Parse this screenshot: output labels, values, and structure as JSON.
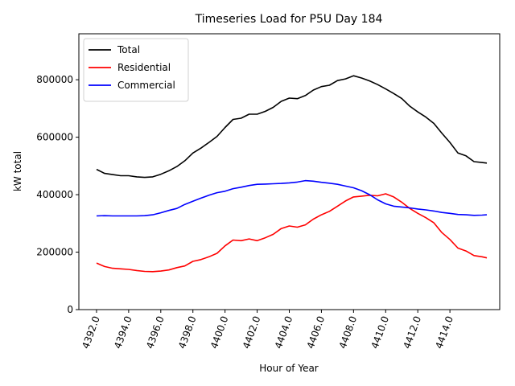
{
  "chart_data": {
    "type": "line",
    "title": "Timeseries Load for P5U   Day 184",
    "xlabel": "Hour of Year",
    "ylabel": "kW total",
    "xlim": [
      4390.9,
      4417.1
    ],
    "ylim": [
      0,
      960000
    ],
    "xticks": [
      4392,
      4394,
      4396,
      4398,
      4400,
      4402,
      4404,
      4406,
      4408,
      4410,
      4412,
      4414
    ],
    "xtick_labels": [
      "4392.0",
      "4394.0",
      "4396.0",
      "4398.0",
      "4400.0",
      "4402.0",
      "4404.0",
      "4406.0",
      "4408.0",
      "4410.0",
      "4412.0",
      "4414.0"
    ],
    "yticks": [
      0,
      200000,
      400000,
      600000,
      800000
    ],
    "ytick_labels": [
      "0",
      "200000",
      "400000",
      "600000",
      "800000"
    ],
    "legend_position": "upper-left",
    "grid": false,
    "series": [
      {
        "name": "Total",
        "color": "#000000",
        "points": [
          [
            4392.0,
            488000
          ],
          [
            4392.5,
            474000
          ],
          [
            4393.0,
            470000
          ],
          [
            4393.5,
            466000
          ],
          [
            4394.0,
            466000
          ],
          [
            4394.5,
            462000
          ],
          [
            4395.0,
            460000
          ],
          [
            4395.5,
            462000
          ],
          [
            4396.0,
            471000
          ],
          [
            4396.5,
            483000
          ],
          [
            4397.0,
            498000
          ],
          [
            4397.5,
            518000
          ],
          [
            4398.0,
            545000
          ],
          [
            4398.5,
            562000
          ],
          [
            4399.0,
            582000
          ],
          [
            4399.5,
            603000
          ],
          [
            4400.0,
            634000
          ],
          [
            4400.5,
            662000
          ],
          [
            4401.0,
            666000
          ],
          [
            4401.5,
            680000
          ],
          [
            4402.0,
            680000
          ],
          [
            4402.5,
            690000
          ],
          [
            4403.0,
            704000
          ],
          [
            4403.5,
            725000
          ],
          [
            4404.0,
            736000
          ],
          [
            4404.5,
            734000
          ],
          [
            4405.0,
            745000
          ],
          [
            4405.5,
            764000
          ],
          [
            4406.0,
            776000
          ],
          [
            4406.5,
            781000
          ],
          [
            4407.0,
            797000
          ],
          [
            4407.5,
            803000
          ],
          [
            4408.0,
            814000
          ],
          [
            4408.5,
            806000
          ],
          [
            4409.0,
            796000
          ],
          [
            4409.5,
            783000
          ],
          [
            4410.0,
            768000
          ],
          [
            4410.5,
            752000
          ],
          [
            4411.0,
            735000
          ],
          [
            4411.5,
            708000
          ],
          [
            4412.0,
            688000
          ],
          [
            4412.5,
            670000
          ],
          [
            4413.0,
            648000
          ],
          [
            4413.5,
            614000
          ],
          [
            4414.0,
            582000
          ],
          [
            4414.5,
            545000
          ],
          [
            4415.0,
            535000
          ],
          [
            4415.5,
            515000
          ],
          [
            4416.0,
            512000
          ],
          [
            4416.3,
            510000
          ]
        ]
      },
      {
        "name": "Residential",
        "color": "#ff0000",
        "points": [
          [
            4392.0,
            162000
          ],
          [
            4392.5,
            150000
          ],
          [
            4393.0,
            144000
          ],
          [
            4393.5,
            142000
          ],
          [
            4394.0,
            140000
          ],
          [
            4394.5,
            136000
          ],
          [
            4395.0,
            133000
          ],
          [
            4395.5,
            132000
          ],
          [
            4396.0,
            134000
          ],
          [
            4396.5,
            138000
          ],
          [
            4397.0,
            146000
          ],
          [
            4397.5,
            152000
          ],
          [
            4398.0,
            168000
          ],
          [
            4398.5,
            174000
          ],
          [
            4399.0,
            184000
          ],
          [
            4399.5,
            196000
          ],
          [
            4400.0,
            222000
          ],
          [
            4400.5,
            242000
          ],
          [
            4401.0,
            240000
          ],
          [
            4401.5,
            246000
          ],
          [
            4402.0,
            240000
          ],
          [
            4402.5,
            250000
          ],
          [
            4403.0,
            262000
          ],
          [
            4403.5,
            282000
          ],
          [
            4404.0,
            291000
          ],
          [
            4404.5,
            287000
          ],
          [
            4405.0,
            295000
          ],
          [
            4405.5,
            315000
          ],
          [
            4406.0,
            330000
          ],
          [
            4406.5,
            342000
          ],
          [
            4407.0,
            360000
          ],
          [
            4407.5,
            378000
          ],
          [
            4408.0,
            392000
          ],
          [
            4408.5,
            395000
          ],
          [
            4409.0,
            398000
          ],
          [
            4409.5,
            396000
          ],
          [
            4410.0,
            403000
          ],
          [
            4410.5,
            392000
          ],
          [
            4411.0,
            374000
          ],
          [
            4411.5,
            352000
          ],
          [
            4412.0,
            335000
          ],
          [
            4412.5,
            320000
          ],
          [
            4413.0,
            302000
          ],
          [
            4413.5,
            268000
          ],
          [
            4414.0,
            244000
          ],
          [
            4414.5,
            214000
          ],
          [
            4415.0,
            204000
          ],
          [
            4415.5,
            188000
          ],
          [
            4416.0,
            184000
          ],
          [
            4416.3,
            180000
          ]
        ]
      },
      {
        "name": "Commercial",
        "color": "#0000ff",
        "points": [
          [
            4392.0,
            326000
          ],
          [
            4392.5,
            327000
          ],
          [
            4393.0,
            326000
          ],
          [
            4393.5,
            326000
          ],
          [
            4394.0,
            326000
          ],
          [
            4394.5,
            326000
          ],
          [
            4395.0,
            327000
          ],
          [
            4395.5,
            330000
          ],
          [
            4396.0,
            337000
          ],
          [
            4396.5,
            345000
          ],
          [
            4397.0,
            352000
          ],
          [
            4397.5,
            366000
          ],
          [
            4398.0,
            377000
          ],
          [
            4398.5,
            388000
          ],
          [
            4399.0,
            398000
          ],
          [
            4399.5,
            407000
          ],
          [
            4400.0,
            412000
          ],
          [
            4400.5,
            421000
          ],
          [
            4401.0,
            426000
          ],
          [
            4401.5,
            432000
          ],
          [
            4402.0,
            436000
          ],
          [
            4402.5,
            437000
          ],
          [
            4403.0,
            438000
          ],
          [
            4403.5,
            439000
          ],
          [
            4404.0,
            441000
          ],
          [
            4404.5,
            444000
          ],
          [
            4405.0,
            449000
          ],
          [
            4405.5,
            447000
          ],
          [
            4406.0,
            443000
          ],
          [
            4406.5,
            440000
          ],
          [
            4407.0,
            436000
          ],
          [
            4407.5,
            430000
          ],
          [
            4408.0,
            424000
          ],
          [
            4408.5,
            414000
          ],
          [
            4409.0,
            400000
          ],
          [
            4409.5,
            382000
          ],
          [
            4410.0,
            368000
          ],
          [
            4410.5,
            360000
          ],
          [
            4411.0,
            357000
          ],
          [
            4411.5,
            354000
          ],
          [
            4412.0,
            350000
          ],
          [
            4412.5,
            347000
          ],
          [
            4413.0,
            343000
          ],
          [
            4413.5,
            338000
          ],
          [
            4414.0,
            335000
          ],
          [
            4414.5,
            331000
          ],
          [
            4415.0,
            330000
          ],
          [
            4415.5,
            328000
          ],
          [
            4416.0,
            329000
          ],
          [
            4416.3,
            330000
          ]
        ]
      }
    ]
  }
}
